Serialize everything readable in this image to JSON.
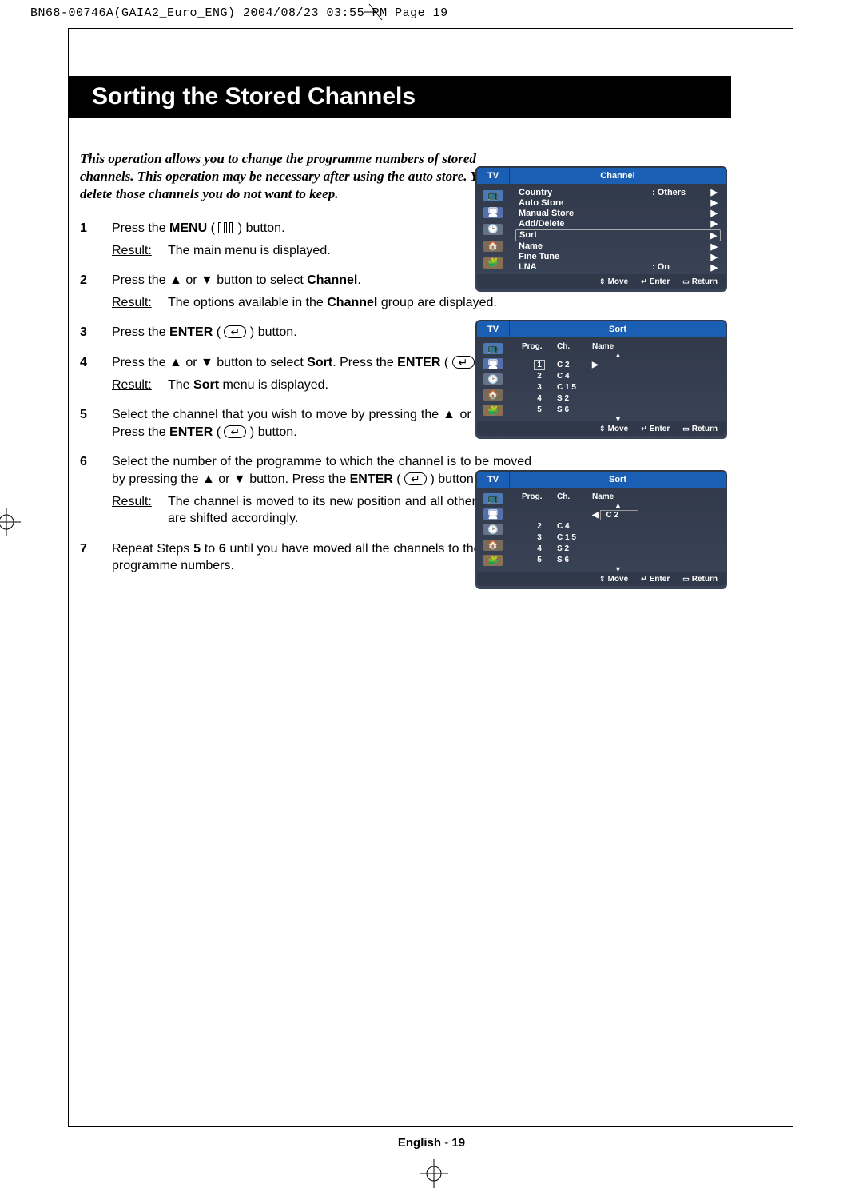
{
  "header": "BN68-00746A(GAIA2_Euro_ENG)  2004/08/23  03:55 PM  Page 19",
  "title": "Sorting the Stored Channels",
  "intro": "This operation allows you to change the programme numbers of stored channels. This operation may be necessary after using the auto store. You can delete those channels you do not want to keep.",
  "steps": {
    "s1": {
      "num": "1",
      "t1a": "Press the ",
      "t1b": "MENU",
      "t1c": " ( ",
      "t1d": " ) button.",
      "r": "The main menu is displayed."
    },
    "s2": {
      "num": "2",
      "t": "Press the ▲ or ▼ button to select ",
      "tb": "Channel",
      "td": ".",
      "r": "The options available in the ",
      "rb": "Channel",
      "rc": " group are displayed."
    },
    "s3": {
      "num": "3",
      "t1": "Press the ",
      "tb": "ENTER",
      "t2": " ( ",
      "t3": " ) button."
    },
    "s4": {
      "num": "4",
      "t1": "Press the ▲ or ▼ button to select ",
      "tb1": "Sort",
      "t2": ". Press the ",
      "tb2": "ENTER",
      "t3": " ( ",
      "t4": " ) button.",
      "r1": "The ",
      "rb": "Sort",
      "r2": " menu is displayed."
    },
    "s5": {
      "num": "5",
      "t1": "Select the channel that you wish to move by pressing the ▲ or ▼ button. Press the ",
      "tb": "ENTER",
      "t2": " ( ",
      "t3": " ) button."
    },
    "s6": {
      "num": "6",
      "t1": "Select the number of the programme to which the channel is to be moved by pressing the ▲ or ▼ button. Press the ",
      "tb": "ENTER",
      "t2": " ( ",
      "t3": " ) button.",
      "r": "The channel is moved to its new position and all other channels are shifted accordingly."
    },
    "s7": {
      "num": "7",
      "t1": "Repeat Steps ",
      "tb1": "5",
      "t2": " to ",
      "tb2": "6",
      "t3": " until you have moved all the channels to the required programme numbers."
    }
  },
  "resultLabel": "Result:",
  "osd": {
    "tv": "TV",
    "foot": {
      "move": "Move",
      "enter": "Enter",
      "return": "Return"
    },
    "channel": {
      "title": "Channel",
      "items": [
        {
          "label": "Country",
          "val": ": Others",
          "arrow": "▶"
        },
        {
          "label": "Auto Store",
          "arrow": "▶"
        },
        {
          "label": "Manual Store",
          "arrow": "▶"
        },
        {
          "label": "Add/Delete",
          "arrow": "▶"
        },
        {
          "label": "Sort",
          "sel": true,
          "arrow": "▶"
        },
        {
          "label": "Name",
          "arrow": "▶"
        },
        {
          "label": "Fine Tune",
          "arrow": "▶"
        },
        {
          "label": "LNA",
          "val": ": On",
          "arrow": "▶"
        }
      ]
    },
    "sort": {
      "title": "Sort",
      "head": {
        "c1": "Prog.",
        "c2": "Ch.",
        "c3": "Name"
      },
      "rows1": [
        {
          "p": "1",
          "ch": "C  2",
          "sel": true
        },
        {
          "p": "2",
          "ch": "C  4"
        },
        {
          "p": "3",
          "ch": "C 1 5"
        },
        {
          "p": "4",
          "ch": "S  2"
        },
        {
          "p": "5",
          "ch": "S  6"
        }
      ],
      "rows2": [
        {
          "p": "",
          "ch": "",
          "input": "C  2"
        },
        {
          "p": "2",
          "ch": "C  4"
        },
        {
          "p": "3",
          "ch": "C 1 5"
        },
        {
          "p": "4",
          "ch": "S  2"
        },
        {
          "p": "5",
          "ch": "S  6"
        }
      ]
    }
  },
  "footer": {
    "lang": "English",
    "sep": " - ",
    "page": "19"
  },
  "icons": [
    "📺",
    "🖥",
    "🕑",
    "🏠",
    "🧩"
  ]
}
